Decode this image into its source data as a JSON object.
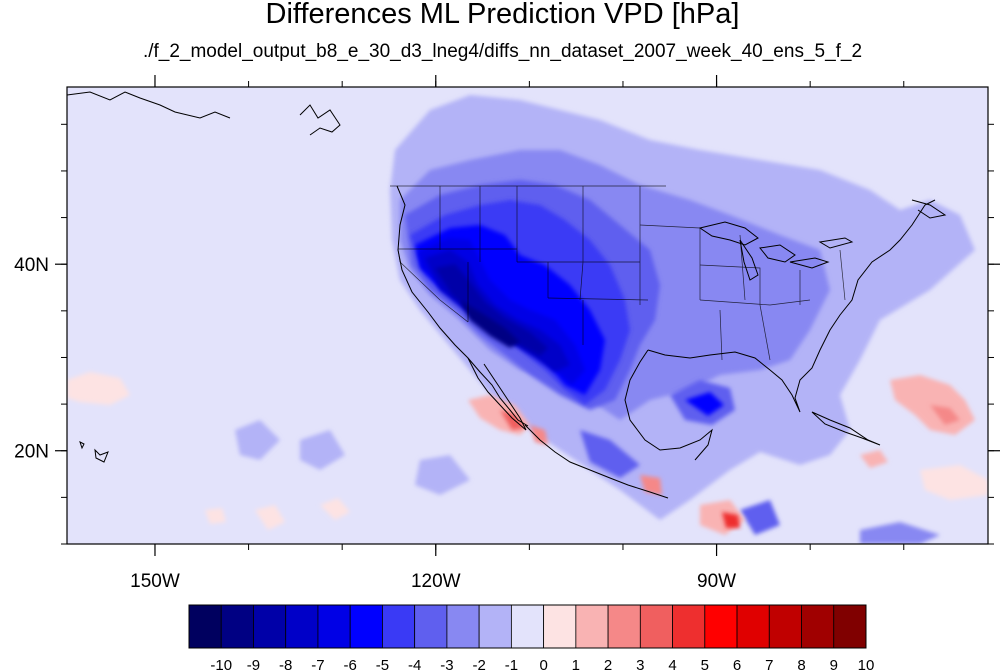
{
  "title": "Differences ML Prediction VPD [hPa]",
  "subtitle": "./f_2_model_output_b8_e_30_d3_lneg4/diffs_nn_dataset_2007_week_40_ens_5_f_2",
  "map": {
    "lon_range": [
      -159.4,
      -61
    ],
    "lat_range": [
      10,
      59
    ],
    "lon_ticks": [
      {
        "value": -150,
        "label": "150W"
      },
      {
        "value": -120,
        "label": "120W"
      },
      {
        "value": -90,
        "label": "90W"
      }
    ],
    "lat_ticks": [
      {
        "value": 40,
        "label": "40N"
      },
      {
        "value": 20,
        "label": "20N"
      }
    ],
    "background_value": 0.3
  },
  "colorbar": {
    "tick_labels": [
      "-10",
      "-9",
      "-8",
      "-7",
      "-6",
      "-5",
      "-4",
      "-3",
      "-2",
      "-1",
      "0",
      "1",
      "2",
      "3",
      "4",
      "5",
      "6",
      "7",
      "8",
      "9",
      "10"
    ],
    "colors": [
      "#00005f",
      "#000083",
      "#0000a8",
      "#0000c8",
      "#0000e6",
      "#0000ff",
      "#3a3af5",
      "#5f5fef",
      "#8888f2",
      "#b3b3f7",
      "#e3e3fb",
      "#fde3e3",
      "#f9b3b3",
      "#f58888",
      "#f05f5f",
      "#ee2f2f",
      "#ff0000",
      "#e00000",
      "#c00000",
      "#a00000",
      "#800000"
    ]
  },
  "colors": {
    "coast": "#000000",
    "frame": "#000000"
  }
}
